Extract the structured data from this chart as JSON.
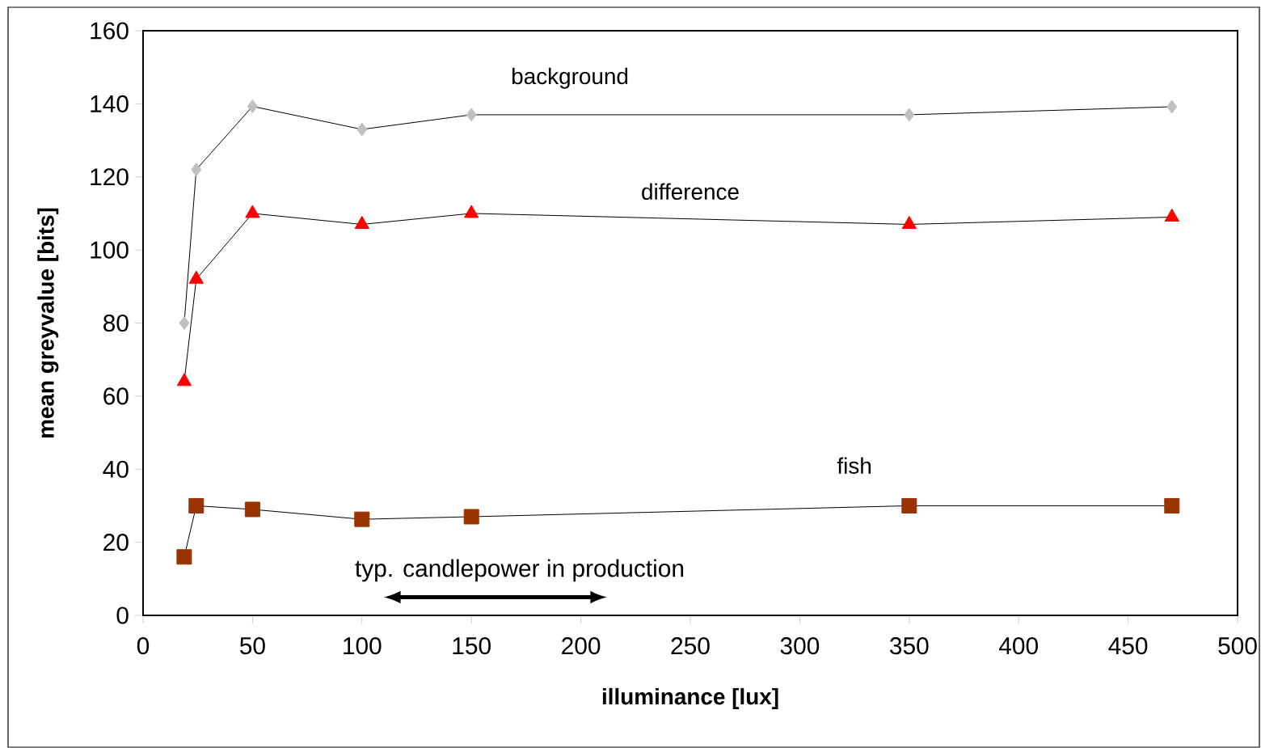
{
  "chart_data": {
    "type": "line",
    "xlabel": "illuminance [lux]",
    "ylabel": "mean greyvalue [bits]",
    "x": [
      18.8,
      24.3,
      50,
      100,
      150,
      350,
      470
    ],
    "series": [
      {
        "name": "background",
        "color": "#c0c0c0",
        "marker": "diamond",
        "values": [
          80,
          122,
          139.3,
          133,
          137,
          137,
          139.2
        ]
      },
      {
        "name": "difference",
        "color": "#ff0000",
        "marker": "triangle",
        "values": [
          64,
          92,
          110,
          107,
          110,
          107,
          109
        ]
      },
      {
        "name": "fish",
        "color": "#993300",
        "marker": "square",
        "values": [
          16,
          30,
          29,
          26.3,
          27,
          30,
          30
        ]
      }
    ],
    "annotations": [
      "typ. candlepower in production"
    ],
    "xlim": [
      0,
      500
    ],
    "ylim": [
      0,
      160
    ],
    "xticks": [
      0,
      50,
      100,
      150,
      200,
      250,
      300,
      350,
      400,
      450,
      500
    ],
    "yticks": [
      0,
      20,
      40,
      60,
      80,
      100,
      120,
      140,
      160
    ],
    "grid": false
  }
}
